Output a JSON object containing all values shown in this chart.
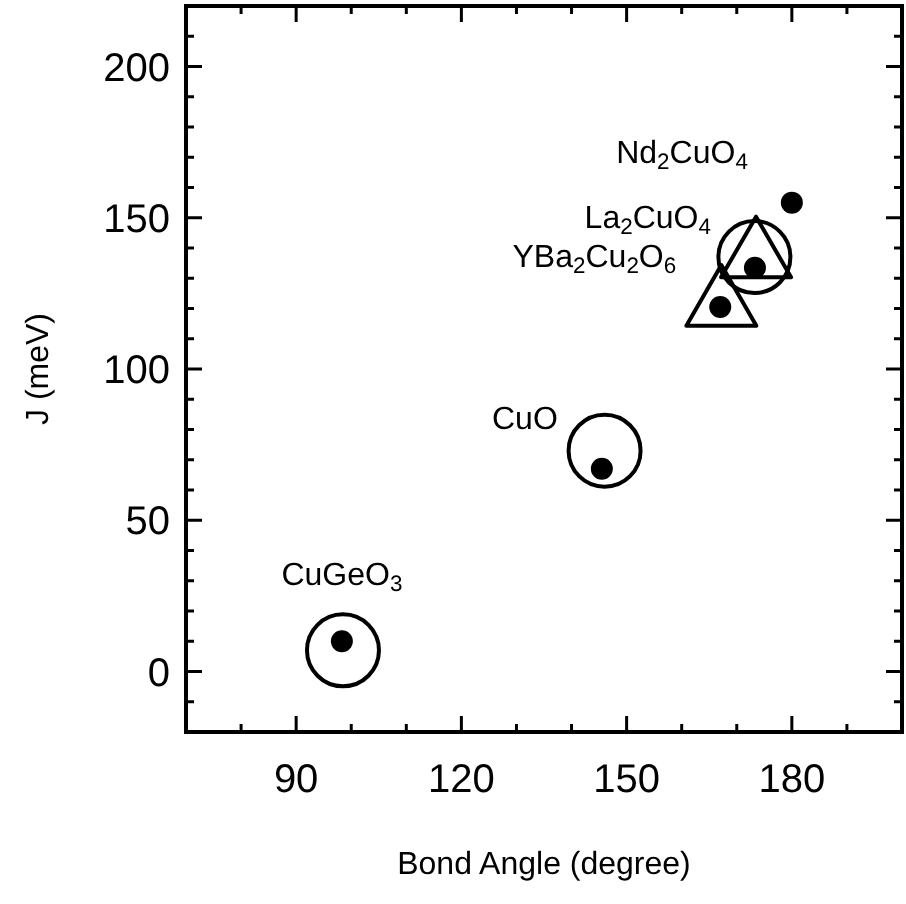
{
  "chart_data": {
    "type": "scatter",
    "xlabel": "Bond Angle (degree)",
    "ylabel": "J (meV)",
    "xlim": [
      70,
      200
    ],
    "ylim": [
      -20,
      220
    ],
    "xticks": [
      {
        "value": 80,
        "label": null
      },
      90,
      {
        "value": 100,
        "label": null
      },
      {
        "value": 110,
        "label": null
      },
      120,
      {
        "value": 130,
        "label": null
      },
      {
        "value": 140,
        "label": null
      },
      150,
      {
        "value": 160,
        "label": null
      },
      {
        "value": 170,
        "label": null
      },
      180,
      {
        "value": 190,
        "label": null
      }
    ],
    "yticks": [
      {
        "value": -10,
        "label": null
      },
      0,
      {
        "value": 10,
        "label": null
      },
      {
        "value": 20,
        "label": null
      },
      {
        "value": 30,
        "label": null
      },
      {
        "value": 40,
        "label": null
      },
      50,
      {
        "value": 60,
        "label": null
      },
      {
        "value": 70,
        "label": null
      },
      {
        "value": 80,
        "label": null
      },
      {
        "value": 90,
        "label": null
      },
      100,
      {
        "value": 110,
        "label": null
      },
      {
        "value": 120,
        "label": null
      },
      {
        "value": 130,
        "label": null
      },
      {
        "value": 140,
        "label": null
      },
      150,
      {
        "value": 160,
        "label": null
      },
      {
        "value": 170,
        "label": null
      },
      {
        "value": 180,
        "label": null
      },
      {
        "value": 190,
        "label": null
      },
      200,
      {
        "value": 210,
        "label": null
      }
    ],
    "tick_labels": "xy",
    "grid": false,
    "series": [
      {
        "color": "#000000",
        "marker": "circle",
        "x": [
          98.3,
          145.5,
          167,
          173.3,
          180
        ],
        "values": [
          10,
          67,
          120.5,
          133.5,
          155
        ]
      },
      {
        "color": "#000000",
        "marker": "open-circle",
        "x": [
          98.5,
          146,
          173.2
        ],
        "values": [
          7,
          73,
          137
        ]
      },
      {
        "color": "#000000",
        "marker": "triangle",
        "x": [
          167.2,
          173.5
        ],
        "values": [
          121,
          137
        ]
      }
    ],
    "annotations": [
      {
        "text": "CuGeO$_{3}$",
        "x": 98.3,
        "y": 10
      },
      {
        "text": "CuO",
        "x": 145.5,
        "y": 67
      },
      {
        "text": "YBa$_{2}$Cu$_{2}$O$_{6}$",
        "x": 167,
        "y": 120.5
      },
      {
        "text": "La$_{2}$CuO$_{4}$",
        "x": 173.3,
        "y": 133.5
      },
      {
        "text": "Nd$_{2}$CuO$_{4}$",
        "x": 180,
        "y": 155
      }
    ]
  }
}
